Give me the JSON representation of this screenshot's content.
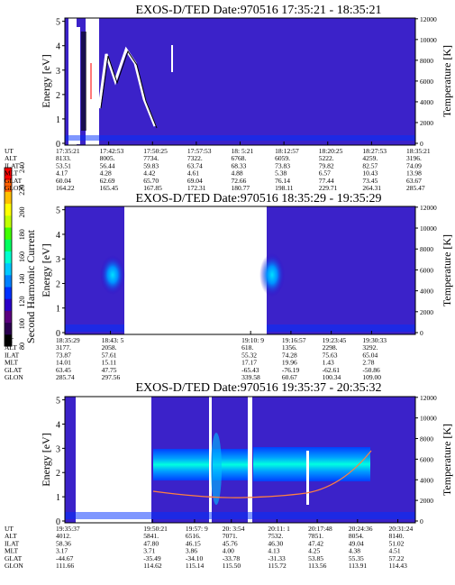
{
  "colorbar": {
    "label": "Second Harmonic Current",
    "ticks": [
      "80",
      "100",
      "120",
      "140",
      "160",
      "180",
      "200",
      "220",
      "240"
    ],
    "colors": [
      "#000000",
      "#2b0050",
      "#5a007f",
      "#2a00c8",
      "#0030ff",
      "#0080ff",
      "#00c8ff",
      "#00ffd0",
      "#00ff60",
      "#40ff00",
      "#c0ff00",
      "#ffff00",
      "#ffc000",
      "#ff6000",
      "#ff0000"
    ]
  },
  "row_labels": [
    "UT",
    "ALT",
    "ILAT",
    "MLT",
    "GLAT",
    "GLON"
  ],
  "panels": [
    {
      "title": "EXOS-D/TED   Date:970516  17:35:21 - 18:35:21",
      "ylabel": "Energy [eV]",
      "y2label": "Temperature [K]",
      "yticks": [
        "0",
        "1",
        "2",
        "3",
        "4",
        "5"
      ],
      "y2ticks": [
        "0",
        "2000",
        "4000",
        "6000",
        "8000",
        "10000",
        "12000"
      ],
      "columns": [
        {
          "UT": "17:35:21",
          "ALT": "8133.",
          "ILAT": "53.51",
          "MLT": "4.17",
          "GLAT": "60.04",
          "GLON": "164.22"
        },
        {
          "UT": "17:42:53",
          "ALT": "8005.",
          "ILAT": "56.44",
          "MLT": "4.28",
          "GLAT": "62.69",
          "GLON": "165.45"
        },
        {
          "UT": "17:50:25",
          "ALT": "7734.",
          "ILAT": "59.83",
          "MLT": "4.42",
          "GLAT": "65.70",
          "GLON": "167.85"
        },
        {
          "UT": "17:57:53",
          "ALT": "7322.",
          "ILAT": "63.74",
          "MLT": "4.61",
          "GLAT": "69.04",
          "GLON": "172.31"
        },
        {
          "UT": "18: 5:21",
          "ALT": "6768.",
          "ILAT": "68.33",
          "MLT": "4.88",
          "GLAT": "72.66",
          "GLON": "180.77"
        },
        {
          "UT": "18:12:57",
          "ALT": "6059.",
          "ILAT": "73.83",
          "MLT": "5.38",
          "GLAT": "76.14",
          "GLON": "198.11"
        },
        {
          "UT": "18:20:25",
          "ALT": "5222.",
          "ILAT": "79.82",
          "MLT": "6.57",
          "GLAT": "77.44",
          "GLON": "229.71"
        },
        {
          "UT": "18:27:53",
          "ALT": "4259.",
          "ILAT": "82.57",
          "MLT": "10.43",
          "GLAT": "73.45",
          "GLON": "264.31"
        },
        {
          "UT": "18:35:21",
          "ALT": "3196.",
          "ILAT": "74.09",
          "MLT": "13.98",
          "GLAT": "63.67",
          "GLON": "285.47"
        }
      ]
    },
    {
      "title": "EXOS-D/TED   Date:970516  18:35:29 - 19:35:29",
      "ylabel": "Energy [eV]",
      "y2label": "Temperature [K]",
      "yticks": [
        "0",
        "1",
        "2",
        "3",
        "4",
        "5"
      ],
      "y2ticks": [
        "0",
        "2000",
        "4000",
        "6000",
        "8000",
        "10000",
        "12000"
      ],
      "columns": [
        {
          "UT": "18:35:29",
          "ALT": "3177.",
          "ILAT": "73.87",
          "MLT": "14.01",
          "GLAT": "63.45",
          "GLON": "285.74"
        },
        {
          "UT": "18:43: 5",
          "ALT": "2058.",
          "ILAT": "57.61",
          "MLT": "15.11",
          "GLAT": "47.75",
          "GLON": "297.56"
        },
        {
          "UT": "19:10: 9",
          "ALT": "618.",
          "ILAT": "55.32",
          "MLT": "17.17",
          "GLAT": "-65.43",
          "GLON": "339.58"
        },
        {
          "UT": "19:16:57",
          "ALT": "1356.",
          "ILAT": "74.28",
          "MLT": "19.96",
          "GLAT": "-76.19",
          "GLON": "60.67"
        },
        {
          "UT": "19:23:45",
          "ALT": "2298.",
          "ILAT": "75.63",
          "MLT": "1.43",
          "GLAT": "-62.61",
          "GLON": "100.34"
        },
        {
          "UT": "19:30:33",
          "ALT": "3292.",
          "ILAT": "65.04",
          "MLT": "2.78",
          "GLAT": "-50.86",
          "GLON": "109.00"
        }
      ]
    },
    {
      "title": "EXOS-D/TED   Date:970516  19:35:37 - 20:35:32",
      "ylabel": "Energy [eV]",
      "y2label": "Temperature [K]",
      "yticks": [
        "0",
        "1",
        "2",
        "3",
        "4",
        "5"
      ],
      "y2ticks": [
        "0",
        "2000",
        "4000",
        "6000",
        "8000",
        "10000",
        "12000"
      ],
      "columns": [
        {
          "UT": "19:35:37",
          "ALT": "4012.",
          "ILAT": "58.36",
          "MLT": "3.17",
          "GLAT": "-44.67",
          "GLON": "111.66"
        },
        {
          "UT": "19:50:21",
          "ALT": "5841.",
          "ILAT": "47.80",
          "MLT": "3.71",
          "GLAT": "-35.49",
          "GLON": "114.62"
        },
        {
          "UT": "19:57: 9",
          "ALT": "6516.",
          "ILAT": "46.15",
          "MLT": "3.86",
          "GLAT": "-34.10",
          "GLON": "115.14"
        },
        {
          "UT": "20: 3:54",
          "ALT": "7071.",
          "ILAT": "45.76",
          "MLT": "4.00",
          "GLAT": "-33.78",
          "GLON": "115.50"
        },
        {
          "UT": "20:11: 1",
          "ALT": "7532.",
          "ILAT": "46.30",
          "MLT": "4.13",
          "GLAT": "-31.33",
          "GLON": "115.72"
        },
        {
          "UT": "20:17:48",
          "ALT": "7851.",
          "ILAT": "47.42",
          "MLT": "4.25",
          "GLAT": "53.85",
          "GLON": "113.56"
        },
        {
          "UT": "20:24:36",
          "ALT": "8054.",
          "ILAT": "49.04",
          "MLT": "4.38",
          "GLAT": "55.35",
          "GLON": "113.91"
        },
        {
          "UT": "20:31:24",
          "ALT": "8140.",
          "ILAT": "51.02",
          "MLT": "4.51",
          "GLAT": "57.22",
          "GLON": "114.43"
        }
      ]
    }
  ],
  "chart_data": [
    {
      "type": "heatmap",
      "title": "EXOS-D/TED   Date:970516  17:35:21 - 18:35:21",
      "xlabel": "",
      "ylabel": "Energy [eV]",
      "y2label": "Temperature [K]",
      "x_ticks": [
        "17:35:21",
        "17:42:53",
        "17:50:25",
        "17:57:53",
        "18: 5:21",
        "18:12:57",
        "18:20:25",
        "18:27:53",
        "18:35:21"
      ],
      "ylim": [
        0,
        5
      ],
      "y2lim": [
        0,
        12000
      ],
      "colorbar_ticks": [
        80,
        100,
        120,
        140,
        160,
        180,
        200,
        220,
        240
      ],
      "data_gaps": [
        [
          0.01,
          0.035
        ],
        [
          0.06,
          0.08
        ]
      ]
    },
    {
      "type": "heatmap",
      "title": "EXOS-D/TED   Date:970516  18:35:29 - 19:35:29",
      "xlabel": "",
      "ylabel": "Energy [eV]",
      "y2label": "Temperature [K]",
      "x_ticks": [
        "18:35:29",
        "18:43: 5",
        "19:10: 9",
        "19:16:57",
        "19:23:45",
        "19:30:33"
      ],
      "ylim": [
        0,
        5
      ],
      "y2lim": [
        0,
        12000
      ],
      "colorbar_ticks": [
        80,
        100,
        120,
        140,
        160,
        180,
        200,
        220,
        240
      ],
      "data_gaps": [
        [
          0.08,
          0.5
        ]
      ]
    },
    {
      "type": "heatmap",
      "title": "EXOS-D/TED   Date:970516  19:35:37 - 20:35:32",
      "xlabel": "",
      "ylabel": "Energy [eV]",
      "y2label": "Temperature [K]",
      "x_ticks": [
        "19:35:37",
        "19:50:21",
        "19:57: 9",
        "20: 3:54",
        "20:11: 1",
        "20:17:48",
        "20:24:36",
        "20:31:24"
      ],
      "ylim": [
        0,
        5
      ],
      "y2lim": [
        0,
        12000
      ],
      "colorbar_ticks": [
        80,
        100,
        120,
        140,
        160,
        180,
        200,
        220,
        240
      ],
      "data_gaps": [
        [
          0.03,
          0.18
        ],
        [
          0.36,
          0.48
        ]
      ]
    }
  ]
}
